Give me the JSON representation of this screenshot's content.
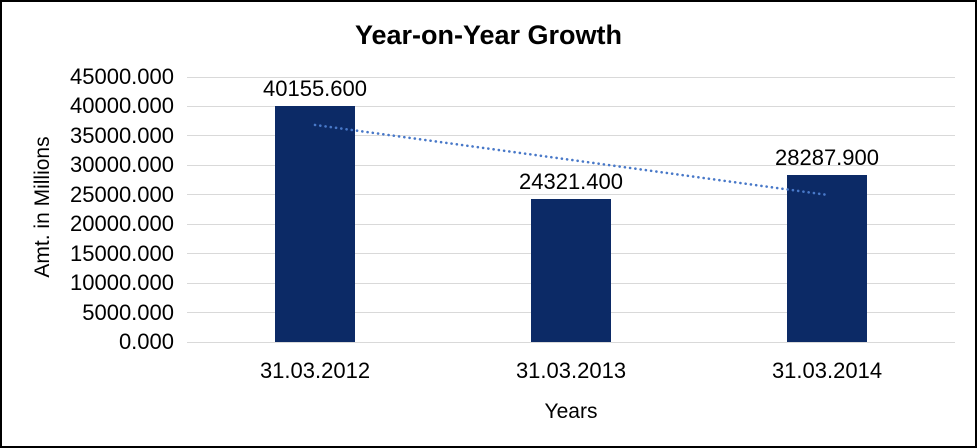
{
  "window": {
    "background_color": "#ffffff",
    "border_color": "#000000"
  },
  "chart_data": {
    "type": "bar",
    "title": "Year-on-Year Growth",
    "xlabel": "Years",
    "ylabel": "Amt. in Millions",
    "categories": [
      "31.03.2012",
      "31.03.2013",
      "31.03.2014"
    ],
    "values": [
      40155.6,
      24321.4,
      28287.9
    ],
    "value_labels": [
      "40155.600",
      "24321.400",
      "28287.900"
    ],
    "ylim": [
      0,
      45000
    ],
    "y_tick_step": 5000,
    "y_tick_labels": [
      "0.000",
      "5000.000",
      "10000.000",
      "15000.000",
      "20000.000",
      "25000.000",
      "30000.000",
      "35000.000",
      "40000.000",
      "45000.000"
    ],
    "grid": true,
    "legend": "none",
    "bar_color": "#0c2a66",
    "gridline_color": "#d9d9d9",
    "label_color": "#000000",
    "trendline": {
      "type": "linear",
      "style": "dotted",
      "color": "#4878c8",
      "start_value": 36855,
      "end_value": 24988
    }
  }
}
